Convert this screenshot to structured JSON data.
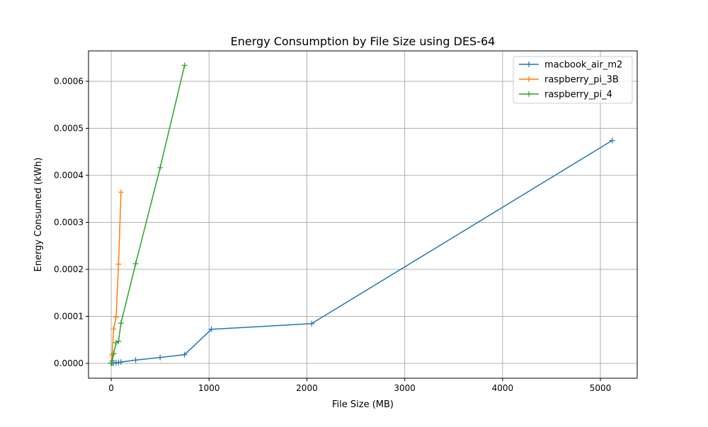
{
  "chart_data": {
    "type": "line",
    "title": "Energy Consumption by File Size using DES-64",
    "xlabel": "File Size (MB)",
    "ylabel": "Energy Consumed (kWh)",
    "xlim": [
      -232,
      5376
    ],
    "ylim": [
      -3.16e-05,
      0.0006646
    ],
    "xticks": [
      0,
      1000,
      2000,
      3000,
      4000,
      5000
    ],
    "xtick_labels": [
      "0",
      "1000",
      "2000",
      "3000",
      "4000",
      "5000"
    ],
    "yticks": [
      0,
      0.0001,
      0.0002,
      0.0003,
      0.0004,
      0.0005,
      0.0006
    ],
    "ytick_labels": [
      "0.0000",
      "0.0001",
      "0.0002",
      "0.0003",
      "0.0004",
      "0.0005",
      "0.0006"
    ],
    "grid": true,
    "legend_position": "top-right",
    "marker": "plus",
    "series": [
      {
        "name": "macbook_air_m2",
        "color": "#1f77b4",
        "x": [
          1,
          10,
          25,
          50,
          75,
          100,
          250,
          500,
          750,
          1024,
          2048,
          5120
        ],
        "y": [
          2e-07,
          5e-07,
          8e-07,
          1.5e-06,
          2e-06,
          2.8e-06,
          7e-06,
          1.25e-05,
          1.85e-05,
          7.25e-05,
          8.45e-05,
          0.000474
        ]
      },
      {
        "name": "raspberry_pi_3B",
        "color": "#ff7f0e",
        "x": [
          1,
          10,
          25,
          50,
          75,
          100
        ],
        "y": [
          1e-06,
          1.8e-05,
          7.3e-05,
          9.85e-05,
          0.000211,
          0.000364
        ]
      },
      {
        "name": "raspberry_pi_4",
        "color": "#2ca02c",
        "x": [
          1,
          10,
          25,
          50,
          75,
          100,
          250,
          500,
          750
        ],
        "y": [
          5e-07,
          5.5e-06,
          2.1e-05,
          4.4e-05,
          4.7e-05,
          8.55e-05,
          0.000212,
          0.000416,
          0.000634
        ]
      }
    ]
  }
}
